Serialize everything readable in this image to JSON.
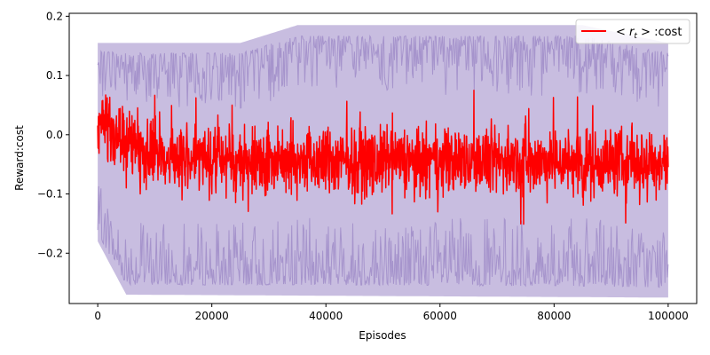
{
  "chart_data": {
    "type": "line",
    "title": "",
    "xlabel": "Episodes",
    "ylabel": "Reward:cost",
    "xlim": [
      -5000,
      105000
    ],
    "ylim": [
      -0.285,
      0.205
    ],
    "xticks": [
      0,
      20000,
      40000,
      60000,
      80000,
      100000
    ],
    "xtick_labels": [
      "0",
      "20000",
      "40000",
      "60000",
      "80000",
      "100000"
    ],
    "yticks": [
      -0.2,
      -0.1,
      0.0,
      0.1,
      0.2
    ],
    "ytick_labels": [
      "−0.2",
      "−0.1",
      "0.0",
      "0.1",
      "0.2"
    ],
    "grid": false,
    "legend_position": "top-right",
    "legend": [
      {
        "label_prefix": "< ",
        "label_math": "r",
        "label_sub": "t",
        "label_suffix": " > :cost",
        "color": "#ff0000"
      }
    ],
    "series": [
      {
        "name": "< r_t > :cost",
        "color": "#ff0000",
        "style": "noisy line",
        "x_range": [
          0,
          100000
        ],
        "mean_profile": [
          {
            "x": 0,
            "y": 0.02
          },
          {
            "x": 2000,
            "y": 0.01
          },
          {
            "x": 5000,
            "y": -0.02
          },
          {
            "x": 10000,
            "y": -0.035
          },
          {
            "x": 20000,
            "y": -0.04
          },
          {
            "x": 40000,
            "y": -0.045
          },
          {
            "x": 60000,
            "y": -0.045
          },
          {
            "x": 80000,
            "y": -0.045
          },
          {
            "x": 100000,
            "y": -0.045
          }
        ],
        "approx_min": -0.18,
        "approx_max": 0.075
      }
    ],
    "bands": [
      {
        "name": "",
        "color": "#9b87c6",
        "alpha": 0.55,
        "x_range": [
          0,
          100000
        ],
        "upper_envelope": [
          {
            "x": 0,
            "y": 0.155
          },
          {
            "x": 25000,
            "y": 0.155
          },
          {
            "x": 35000,
            "y": 0.185
          },
          {
            "x": 85000,
            "y": 0.185
          },
          {
            "x": 100000,
            "y": 0.155
          }
        ],
        "lower_envelope": [
          {
            "x": 0,
            "y": -0.18
          },
          {
            "x": 5000,
            "y": -0.27
          },
          {
            "x": 100000,
            "y": -0.275
          }
        ]
      }
    ]
  }
}
